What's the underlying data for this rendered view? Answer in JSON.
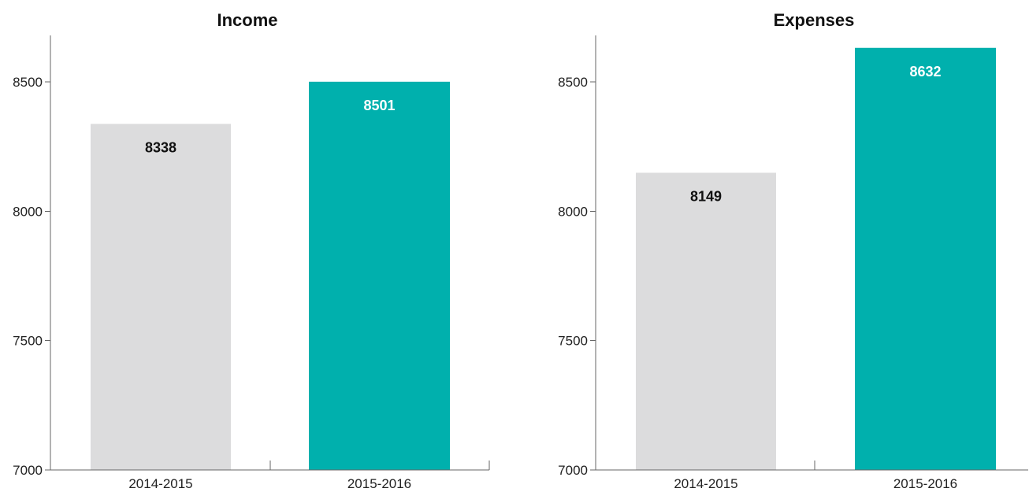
{
  "colors": {
    "previous_year": "#dcdcdd",
    "current_year": "#00b0ad",
    "label_dark": "#111111",
    "label_light": "#ffffff"
  },
  "chart_data": [
    {
      "type": "bar",
      "title": "Income",
      "xlabel": "",
      "ylabel": "",
      "categories": [
        "2014-2015",
        "2015-2016"
      ],
      "values": [
        8338,
        8501
      ],
      "ylim": [
        7000,
        8680
      ],
      "yticks": [
        7000,
        7500,
        8000,
        8500
      ],
      "grid": false,
      "legend": "none"
    },
    {
      "type": "bar",
      "title": "Expenses",
      "xlabel": "",
      "ylabel": "",
      "categories": [
        "2014-2015",
        "2015-2016"
      ],
      "values": [
        8149,
        8632
      ],
      "ylim": [
        7000,
        8680
      ],
      "yticks": [
        7000,
        7500,
        8000,
        8500
      ],
      "grid": false,
      "legend": "none"
    }
  ]
}
